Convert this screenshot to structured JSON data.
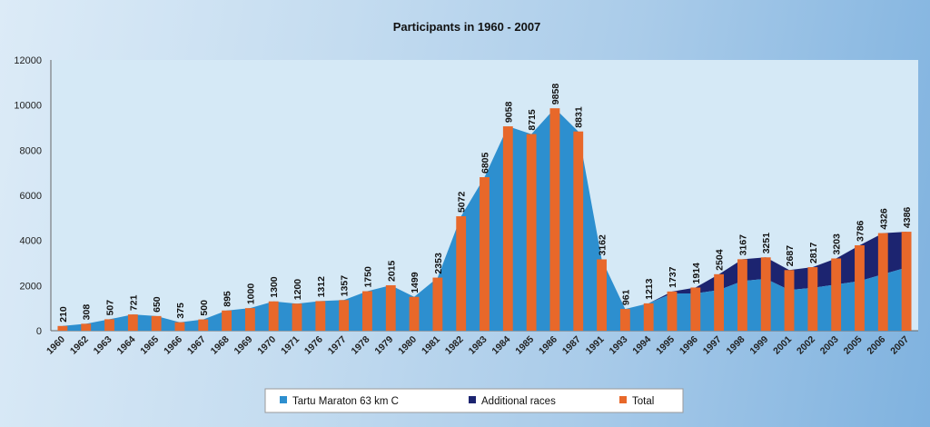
{
  "chart_data": {
    "type": "bar",
    "title": "Participants in 1960 - 2007",
    "xlabel": "",
    "ylabel": "",
    "ylim": [
      0,
      12000
    ],
    "yticks": [
      0,
      2000,
      4000,
      6000,
      8000,
      10000,
      12000
    ],
    "grid": false,
    "legend_position": "bottom",
    "colors": {
      "tartu": "#2d8fcf",
      "additional": "#1c2470",
      "total": "#e8682a",
      "plot_bg": "#d5e9f6"
    },
    "categories": [
      "1960",
      "1962",
      "1963",
      "1964",
      "1965",
      "1966",
      "1967",
      "1968",
      "1969",
      "1970",
      "1971",
      "1976",
      "1977",
      "1978",
      "1979",
      "1980",
      "1981",
      "1982",
      "1983",
      "1984",
      "1985",
      "1986",
      "1987",
      "1991",
      "1993",
      "1994",
      "1995",
      "1996",
      "1997",
      "1998",
      "1999",
      "2001",
      "2002",
      "2003",
      "2005",
      "2006",
      "2007"
    ],
    "series": [
      {
        "name": "Tartu Maraton 63 km C",
        "style": "area",
        "values": [
          210,
          308,
          507,
          721,
          650,
          375,
          500,
          895,
          1000,
          1300,
          1200,
          1312,
          1357,
          1750,
          2015,
          1499,
          2353,
          5072,
          6805,
          9058,
          8715,
          9858,
          8831,
          3162,
          961,
          1213,
          1650,
          1650,
          1800,
          2200,
          2300,
          1800,
          1900,
          2050,
          2200,
          2500,
          2800
        ]
      },
      {
        "name": "Additional races",
        "style": "area",
        "values": [
          0,
          0,
          0,
          0,
          0,
          0,
          0,
          0,
          0,
          0,
          0,
          0,
          0,
          0,
          0,
          0,
          0,
          0,
          0,
          0,
          0,
          0,
          0,
          0,
          0,
          0,
          87,
          264,
          704,
          967,
          951,
          887,
          917,
          1153,
          1586,
          1826,
          1586
        ]
      },
      {
        "name": "Total",
        "style": "bar",
        "values": [
          210,
          308,
          507,
          721,
          650,
          375,
          500,
          895,
          1000,
          1300,
          1200,
          1312,
          1357,
          1750,
          2015,
          1499,
          2353,
          5072,
          6805,
          9058,
          8715,
          9858,
          8831,
          3162,
          961,
          1213,
          1737,
          1914,
          2504,
          3167,
          3251,
          2687,
          2817,
          3203,
          3786,
          4326,
          4386
        ]
      }
    ]
  }
}
